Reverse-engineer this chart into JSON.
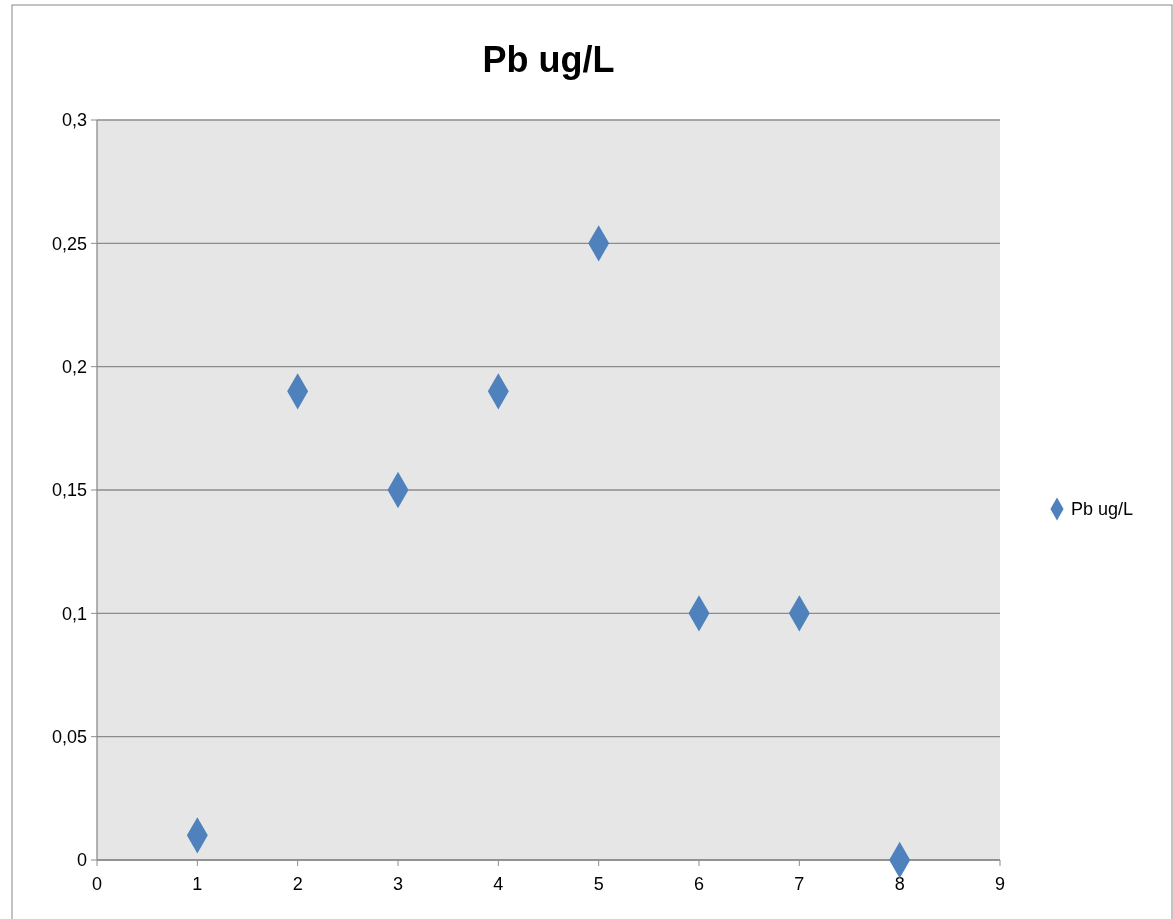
{
  "chart_data": {
    "type": "scatter",
    "title": "Pb ug/L",
    "x": [
      1,
      2,
      3,
      4,
      5,
      6,
      7,
      8
    ],
    "series": [
      {
        "name": "Pb ug/L",
        "color": "#4f81bd",
        "values": [
          0.01,
          0.19,
          0.15,
          0.19,
          0.25,
          0.1,
          0.1,
          0
        ]
      }
    ],
    "xlim": [
      0,
      9
    ],
    "xticks": [
      0,
      1,
      2,
      3,
      4,
      5,
      6,
      7,
      8,
      9
    ],
    "ylim": [
      0,
      0.3
    ],
    "yticks": [
      0,
      {
        "value": 0.05,
        "label": "0,05"
      },
      {
        "value": 0.1,
        "label": "0,1"
      },
      {
        "value": 0.15,
        "label": "0,15"
      },
      {
        "value": 0.2,
        "label": "0,2"
      },
      {
        "value": 0.25,
        "label": "0,25"
      },
      {
        "value": 0.3,
        "label": "0,3"
      }
    ],
    "grid": "y",
    "legend": "right",
    "marker": "diamond"
  }
}
